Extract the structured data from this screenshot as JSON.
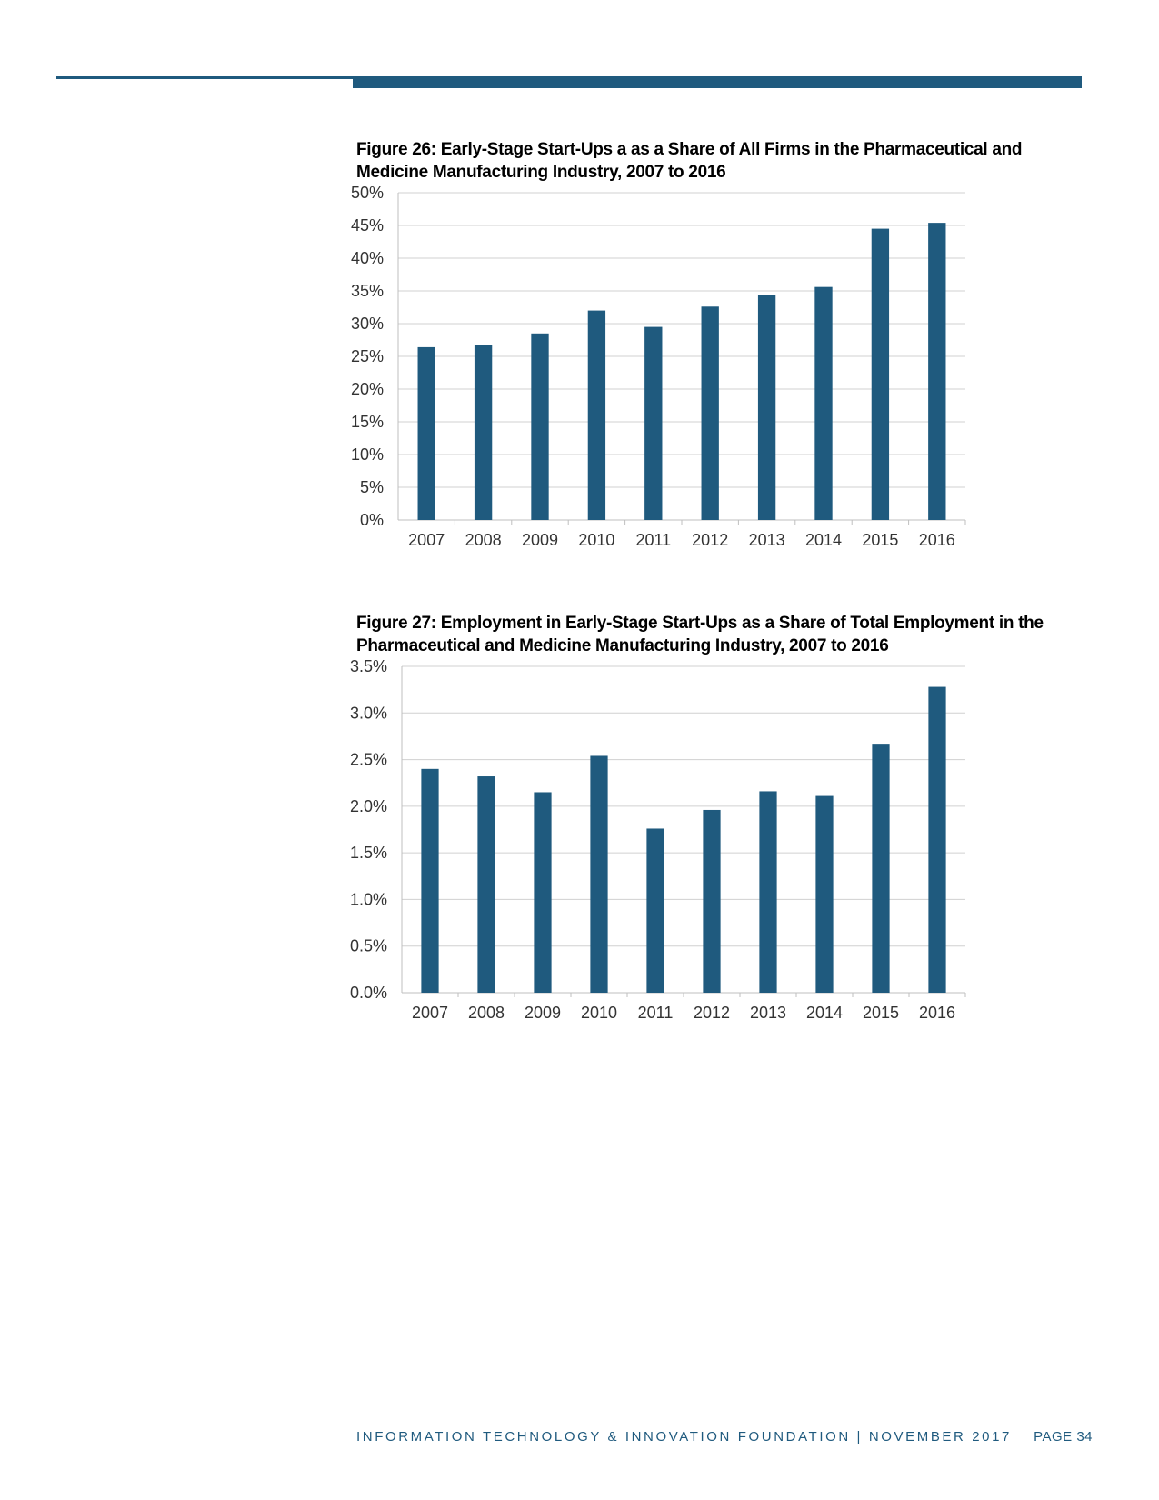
{
  "header": {
    "accent_color": "#1f5a7e"
  },
  "figure26": {
    "title": "Figure 26: Early-Stage Start-Ups a as a Share of All Firms in the Pharmaceutical and Medicine Manufacturing Industry, 2007 to 2016"
  },
  "figure27": {
    "title": "Figure 27: Employment in Early-Stage Start-Ups as a Share of Total Employment in the Pharmaceutical and Medicine Manufacturing Industry, 2007 to 2016"
  },
  "footer": {
    "org_text": "INFORMATION TECHNOLOGY & INNOVATION FOUNDATION | NOVEMBER 2017",
    "page_label": "PAGE 34"
  },
  "chart_data": [
    {
      "type": "bar",
      "title": "Figure 26: Early-Stage Start-Ups a as a Share of All Firms in the Pharmaceutical and Medicine Manufacturing Industry, 2007 to 2016",
      "categories": [
        "2007",
        "2008",
        "2009",
        "2010",
        "2011",
        "2012",
        "2013",
        "2014",
        "2015",
        "2016"
      ],
      "values": [
        26.4,
        26.7,
        28.5,
        32.0,
        29.5,
        32.6,
        34.4,
        35.6,
        44.5,
        45.4
      ],
      "unit": "%",
      "ylim": [
        0,
        50
      ],
      "yticks": [
        "0%",
        "5%",
        "10%",
        "15%",
        "20%",
        "25%",
        "30%",
        "35%",
        "40%",
        "45%",
        "50%"
      ],
      "xlabel": "",
      "ylabel": "",
      "grid": true,
      "bar_color": "#1f5a7e"
    },
    {
      "type": "bar",
      "title": "Figure 27: Employment in Early-Stage Start-Ups as a Share of Total Employment in the Pharmaceutical and Medicine Manufacturing Industry, 2007 to 2016",
      "categories": [
        "2007",
        "2008",
        "2009",
        "2010",
        "2011",
        "2012",
        "2013",
        "2014",
        "2015",
        "2016"
      ],
      "values": [
        2.4,
        2.32,
        2.15,
        2.54,
        1.76,
        1.96,
        2.16,
        2.11,
        2.67,
        3.28
      ],
      "unit": "%",
      "ylim": [
        0,
        3.5
      ],
      "yticks": [
        "0.0%",
        "0.5%",
        "1.0%",
        "1.5%",
        "2.0%",
        "2.5%",
        "3.0%",
        "3.5%"
      ],
      "xlabel": "",
      "ylabel": "",
      "grid": true,
      "bar_color": "#1f5a7e"
    }
  ]
}
